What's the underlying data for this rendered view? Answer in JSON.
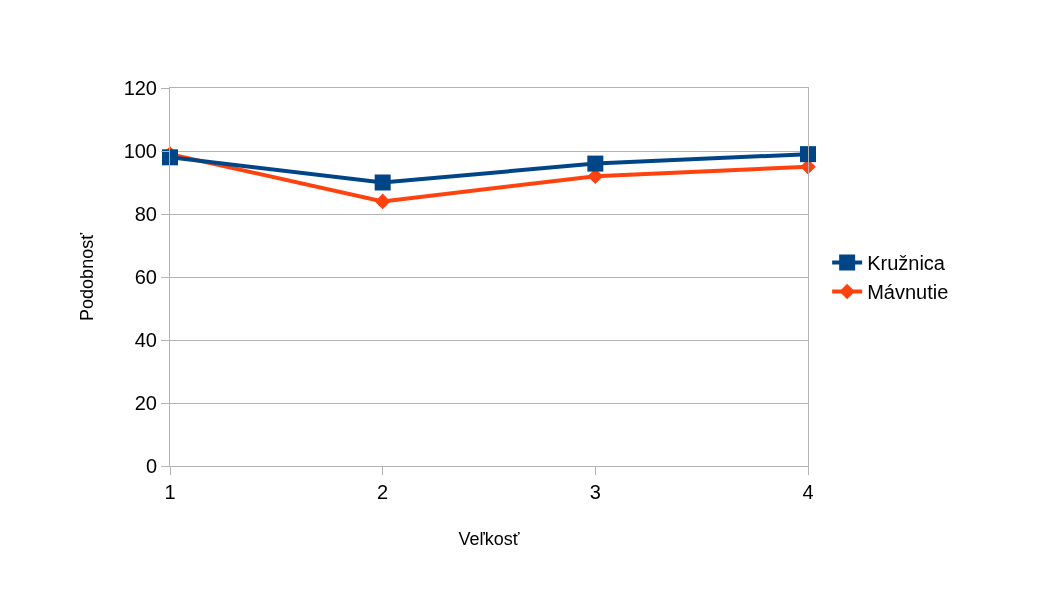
{
  "chart_data": {
    "type": "line",
    "xlabel": "Veľkosť",
    "ylabel": "Podobnosť",
    "x": [
      1,
      2,
      3,
      4
    ],
    "series": [
      {
        "name": "Kružnica",
        "color": "#004586",
        "marker": "square",
        "values": [
          98,
          90,
          96,
          99
        ]
      },
      {
        "name": "Mávnutie",
        "color": "#ff420e",
        "marker": "diamond",
        "values": [
          99,
          84,
          92,
          95
        ]
      }
    ],
    "xlim": [
      1,
      4
    ],
    "xticks": [
      1,
      2,
      3,
      4
    ],
    "ylim": [
      0,
      120
    ],
    "yticks": [
      0,
      20,
      40,
      60,
      80,
      100,
      120
    ],
    "grid": "y",
    "legend": "right",
    "line_style": "solid"
  }
}
